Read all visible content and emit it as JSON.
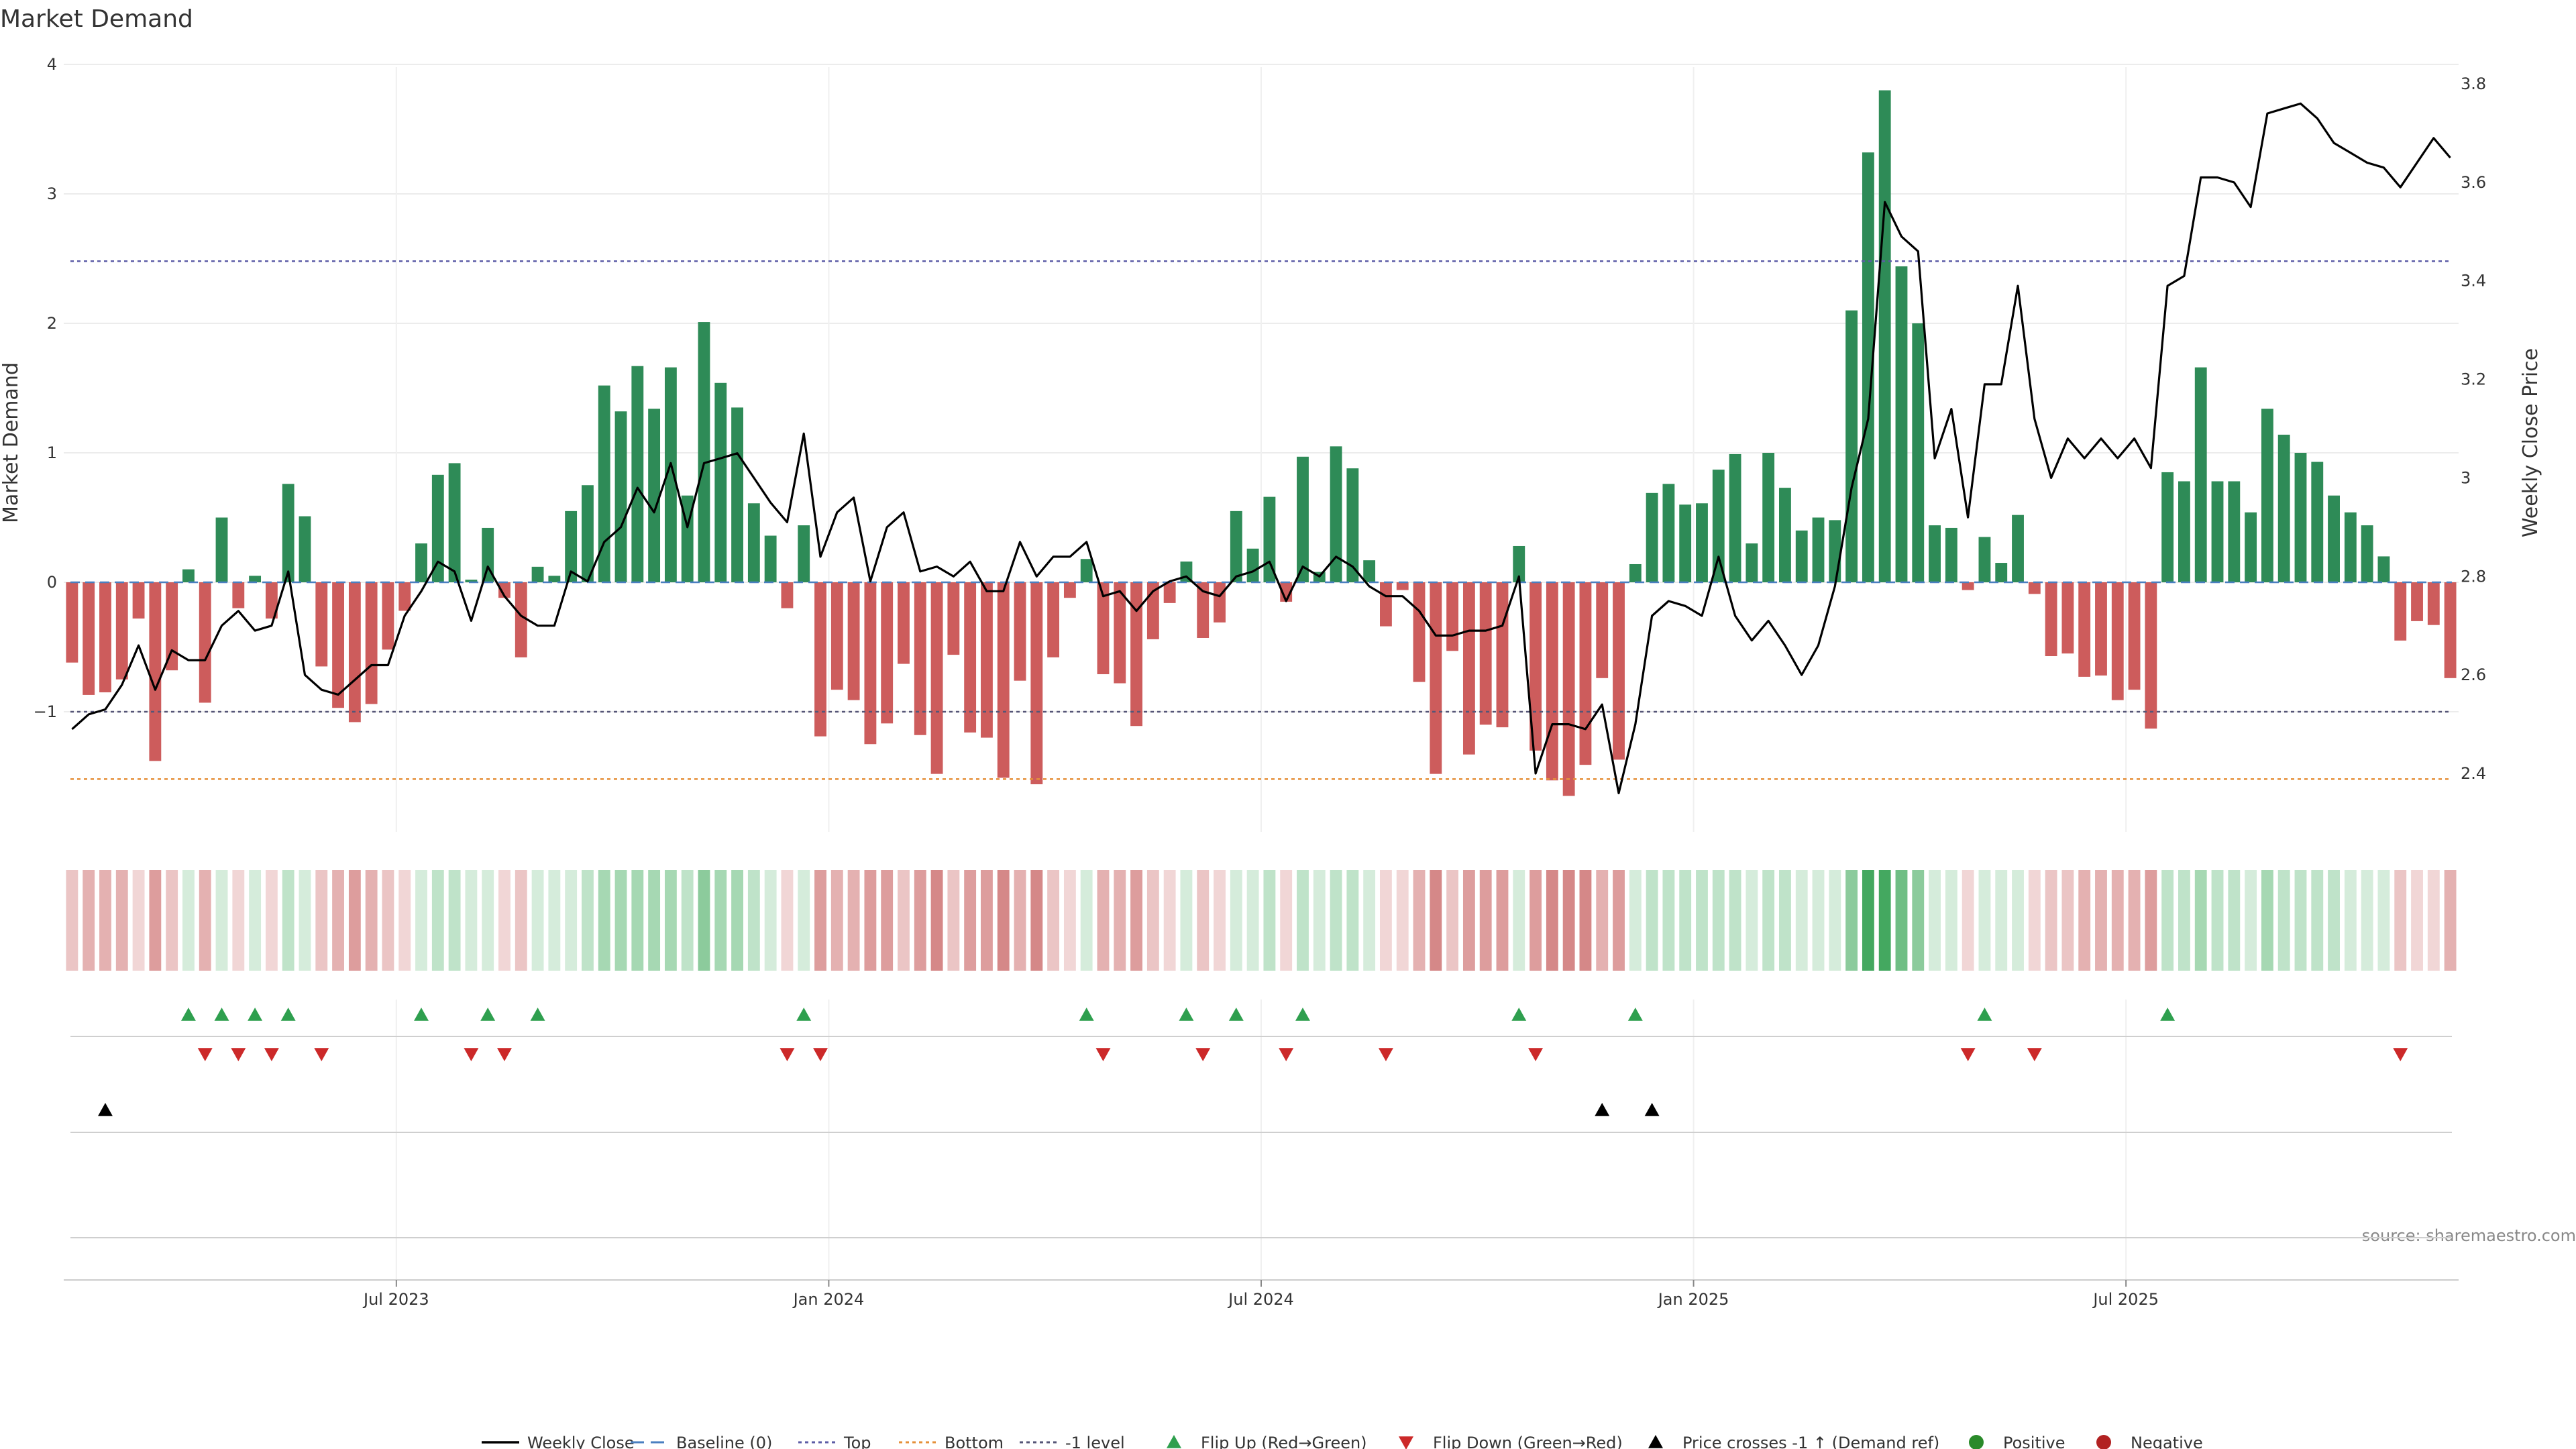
{
  "chart_data": {
    "type": "bar",
    "title": "Market Demand",
    "ylabel": "Market Demand",
    "y2label": "Weekly Close Price",
    "source": "source: sharemaestro.com",
    "ylim": [
      -2,
      4
    ],
    "y2lim": [
      2.22,
      3.83
    ],
    "yticks": [
      {
        "v": -1,
        "label": "−1"
      },
      {
        "v": 0,
        "label": "0"
      },
      {
        "v": 1,
        "label": "1"
      },
      {
        "v": 2,
        "label": "2"
      },
      {
        "v": 3,
        "label": "3"
      },
      {
        "v": 4,
        "label": "4"
      }
    ],
    "y2ticks": [
      {
        "v": 2.4,
        "label": "2.4"
      },
      {
        "v": 2.6,
        "label": "2.6"
      },
      {
        "v": 2.8,
        "label": "2.8"
      },
      {
        "v": 3.0,
        "label": "3"
      },
      {
        "v": 3.2,
        "label": "3.2"
      },
      {
        "v": 3.4,
        "label": "3.4"
      },
      {
        "v": 3.6,
        "label": "3.6"
      },
      {
        "v": 3.8,
        "label": "3.8"
      }
    ],
    "xticks": [
      {
        "week": 20,
        "label": "Jul 2023"
      },
      {
        "week": 46,
        "label": "Jan 2024"
      },
      {
        "week": 72,
        "label": "Jul 2024"
      },
      {
        "week": 98,
        "label": "Jan 2025"
      },
      {
        "week": 124,
        "label": "Jul 2025"
      }
    ],
    "reference_lines": {
      "baseline": 0,
      "top": 2.48,
      "bottom": -1.52,
      "minus_one": -1
    },
    "demand": [
      -0.62,
      -0.87,
      -0.85,
      -0.75,
      -0.28,
      -1.38,
      -0.68,
      0.1,
      -0.93,
      0.5,
      -0.2,
      0.05,
      -0.28,
      0.76,
      0.51,
      -0.65,
      -0.97,
      -1.08,
      -0.94,
      -0.52,
      -0.22,
      0.3,
      0.83,
      0.92,
      0.02,
      0.42,
      -0.12,
      -0.58,
      0.12,
      0.05,
      0.55,
      0.75,
      1.52,
      1.32,
      1.67,
      1.34,
      1.66,
      0.67,
      2.01,
      1.54,
      1.35,
      0.61,
      0.36,
      -0.2,
      0.44,
      -1.19,
      -0.83,
      -0.91,
      -1.25,
      -1.09,
      -0.63,
      -1.18,
      -1.48,
      -0.56,
      -1.16,
      -1.2,
      -1.51,
      -0.76,
      -1.56,
      -0.58,
      -0.12,
      0.18,
      -0.71,
      -0.78,
      -1.11,
      -0.44,
      -0.16,
      0.16,
      -0.43,
      -0.31,
      0.55,
      0.26,
      0.66,
      -0.15,
      0.97,
      0.08,
      1.05,
      0.88,
      0.17,
      -0.34,
      -0.06,
      -0.77,
      -1.48,
      -0.53,
      -1.33,
      -1.1,
      -1.12,
      0.28,
      -1.3,
      -1.53,
      -1.65,
      -1.41,
      -0.74,
      -1.37,
      0.14,
      0.69,
      0.76,
      0.6,
      0.61,
      0.87,
      0.99,
      0.3,
      1.0,
      0.73,
      0.4,
      0.5,
      0.48,
      2.1,
      3.32,
      3.8,
      2.44,
      2.0,
      0.44,
      0.42,
      -0.06,
      0.35,
      0.15,
      0.52,
      -0.09,
      -0.57,
      -0.55,
      -0.73,
      -0.72,
      -0.91,
      -0.83,
      -1.13,
      0.85,
      0.78,
      1.66,
      0.78,
      0.78,
      0.54,
      1.34,
      1.14,
      1.0,
      0.93,
      0.67,
      0.54,
      0.44,
      0.2,
      -0.45,
      -0.3,
      -0.33,
      -0.74
    ],
    "close": [
      2.49,
      2.52,
      2.53,
      2.58,
      2.66,
      2.57,
      2.65,
      2.63,
      2.63,
      2.7,
      2.73,
      2.69,
      2.7,
      2.81,
      2.6,
      2.57,
      2.56,
      2.59,
      2.62,
      2.62,
      2.72,
      2.77,
      2.83,
      2.81,
      2.71,
      2.82,
      2.76,
      2.72,
      2.7,
      2.7,
      2.81,
      2.79,
      2.87,
      2.9,
      2.98,
      2.93,
      3.03,
      2.9,
      3.03,
      3.04,
      3.05,
      3.0,
      2.95,
      2.91,
      3.09,
      2.84,
      2.93,
      2.96,
      2.79,
      2.9,
      2.93,
      2.81,
      2.82,
      2.8,
      2.83,
      2.77,
      2.77,
      2.87,
      2.8,
      2.84,
      2.84,
      2.87,
      2.76,
      2.77,
      2.73,
      2.77,
      2.79,
      2.8,
      2.77,
      2.76,
      2.8,
      2.81,
      2.83,
      2.75,
      2.82,
      2.8,
      2.84,
      2.82,
      2.78,
      2.76,
      2.76,
      2.73,
      2.68,
      2.68,
      2.69,
      2.69,
      2.7,
      2.8,
      2.4,
      2.5,
      2.5,
      2.49,
      2.54,
      2.36,
      2.5,
      2.72,
      2.75,
      2.74,
      2.72,
      2.84,
      2.72,
      2.67,
      2.71,
      2.66,
      2.6,
      2.66,
      2.78,
      2.98,
      3.12,
      3.56,
      3.49,
      3.46,
      3.04,
      3.14,
      2.92,
      3.19,
      3.19,
      3.39,
      3.12,
      3.0,
      3.08,
      3.04,
      3.08,
      3.04,
      3.08,
      3.02,
      3.39,
      3.41,
      3.61,
      3.61,
      3.6,
      3.55,
      3.74,
      3.75,
      3.76,
      3.73,
      3.68,
      3.66,
      3.64,
      3.63,
      3.59,
      3.64,
      3.69,
      3.65
    ],
    "strip_green_shades": [
      "#d5ecdb",
      "#bfe3c9",
      "#a6d8b3",
      "#8ccb9c",
      "#6fbe84",
      "#44a860"
    ],
    "strip_red_shades": [
      "#f1d6d6",
      "#ebc5c5",
      "#e4b1b1",
      "#dd9d9d",
      "#d58888"
    ],
    "flip_up_weeks": [
      7,
      9,
      11,
      13,
      21,
      25,
      28,
      44,
      61,
      67,
      70,
      74,
      87,
      94,
      115,
      126
    ],
    "flip_down_weeks": [
      8,
      10,
      12,
      15,
      24,
      26,
      43,
      45,
      62,
      68,
      73,
      79,
      88,
      114,
      118,
      140
    ],
    "price_cross_weeks": [
      2,
      92,
      95
    ],
    "legend": [
      {
        "key": "weekly-close",
        "label": "Weekly Close",
        "marker": "line",
        "color": "#000000"
      },
      {
        "key": "baseline",
        "label": "Baseline (0)",
        "marker": "dash",
        "color": "#4a7fc0"
      },
      {
        "key": "top",
        "label": "Top",
        "marker": "dot",
        "color": "#5c5ca6"
      },
      {
        "key": "bottom",
        "label": "Bottom",
        "marker": "dot",
        "color": "#e5903a"
      },
      {
        "key": "minus-one",
        "label": "-1 level",
        "marker": "dot",
        "color": "#555577"
      },
      {
        "key": "flip-up",
        "label": "Flip Up (Red→Green)",
        "marker": "tri-up",
        "color": "#2e9f4e"
      },
      {
        "key": "flip-down",
        "label": "Flip Down (Green→Red)",
        "marker": "tri-down",
        "color": "#cc2929"
      },
      {
        "key": "price-cross",
        "label": "Price crosses -1 ↑ (Demand ref)",
        "marker": "tri-up",
        "color": "#000000"
      },
      {
        "key": "positive",
        "label": "Positive",
        "marker": "circle",
        "color": "#2a8a2a"
      },
      {
        "key": "negative",
        "label": "Negative",
        "marker": "circle",
        "color": "#b22222"
      }
    ],
    "colors": {
      "positive_bar": "#2e8b57",
      "negative_bar": "#cd5c5c",
      "close_line": "#000000"
    }
  }
}
